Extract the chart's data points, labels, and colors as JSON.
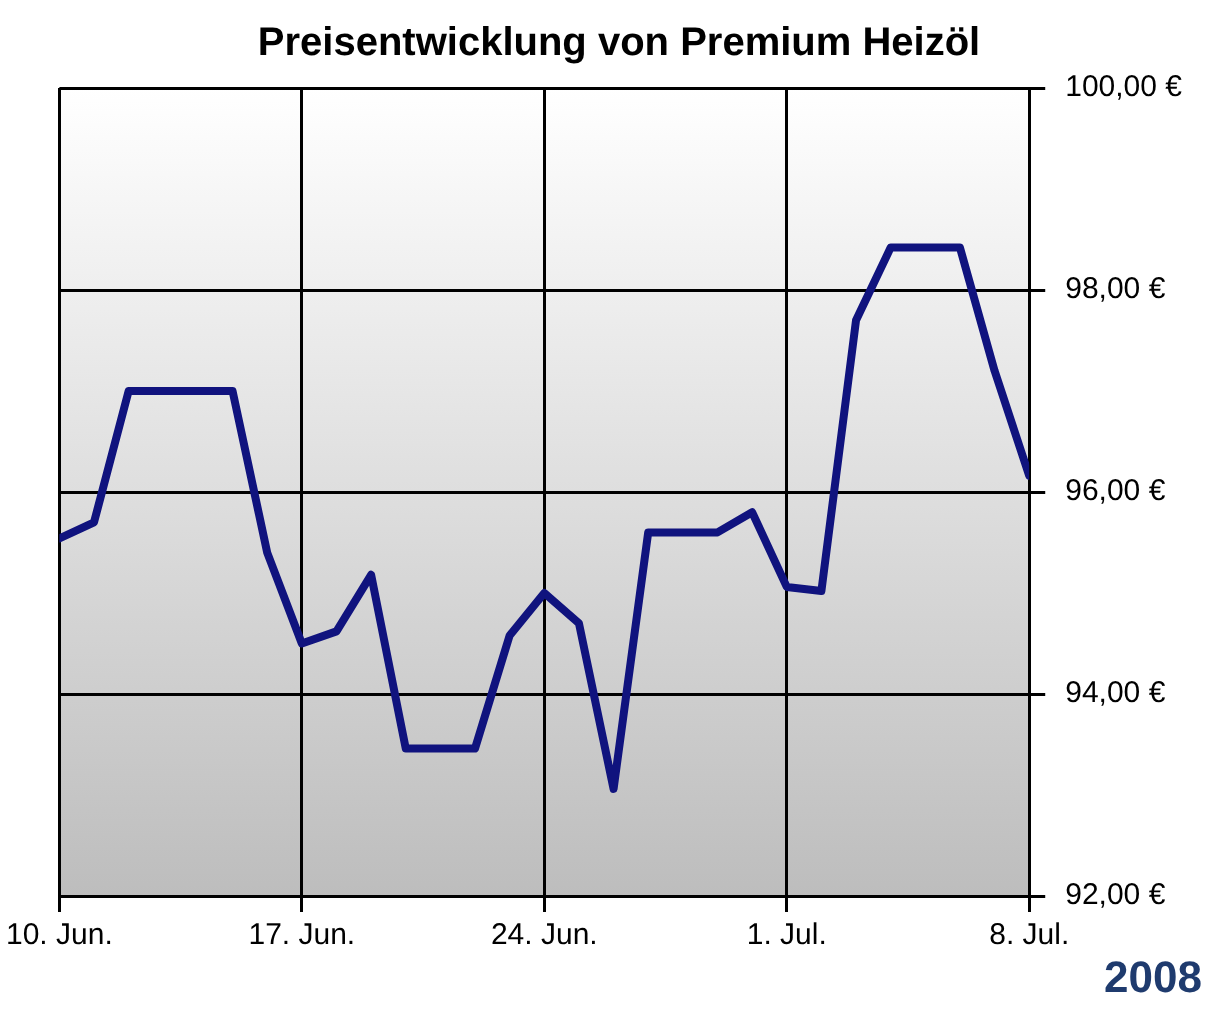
{
  "chart_data": {
    "type": "line",
    "title": "Preisentwicklung von Premium Heizöl",
    "x": [
      "2008-06-10",
      "2008-06-11",
      "2008-06-12",
      "2008-06-15",
      "2008-06-16",
      "2008-06-17",
      "2008-06-18",
      "2008-06-19",
      "2008-06-20",
      "2008-06-22",
      "2008-06-23",
      "2008-06-24",
      "2008-06-25",
      "2008-06-26",
      "2008-06-27",
      "2008-06-29",
      "2008-06-30",
      "2008-07-01",
      "2008-07-02",
      "2008-07-03",
      "2008-07-04",
      "2008-07-06",
      "2008-07-07",
      "2008-07-08"
    ],
    "series": [
      {
        "color": "#10137e",
        "values": [
          95.54,
          95.7,
          97.0,
          97.0,
          95.4,
          94.5,
          94.62,
          95.18,
          93.46,
          93.46,
          94.58,
          95.0,
          94.7,
          93.06,
          95.6,
          95.6,
          95.8,
          95.06,
          95.02,
          97.7,
          98.42,
          98.42,
          97.2,
          96.16
        ]
      }
    ],
    "xlim": [
      "2008-06-10",
      "2008-07-08"
    ],
    "xticks": [
      {
        "value": "2008-06-10",
        "label": "10. Jun."
      },
      {
        "value": "2008-06-17",
        "label": "17. Jun."
      },
      {
        "value": "2008-06-24",
        "label": "24. Jun."
      },
      {
        "value": "2008-07-01",
        "label": "1. Jul."
      },
      {
        "value": "2008-07-08",
        "label": "8. Jul."
      }
    ],
    "ylim": [
      92,
      100
    ],
    "yticks": [
      {
        "value": 92,
        "label": "92,00 €"
      },
      {
        "value": 94,
        "label": "94,00 €"
      },
      {
        "value": 96,
        "label": "96,00 €"
      },
      {
        "value": 98,
        "label": "98,00 €"
      },
      {
        "value": 100,
        "label": "100,00 €"
      }
    ],
    "annotations": [
      "2008"
    ],
    "grid": true,
    "legend": false,
    "marker": "none",
    "line_style": "solid"
  }
}
